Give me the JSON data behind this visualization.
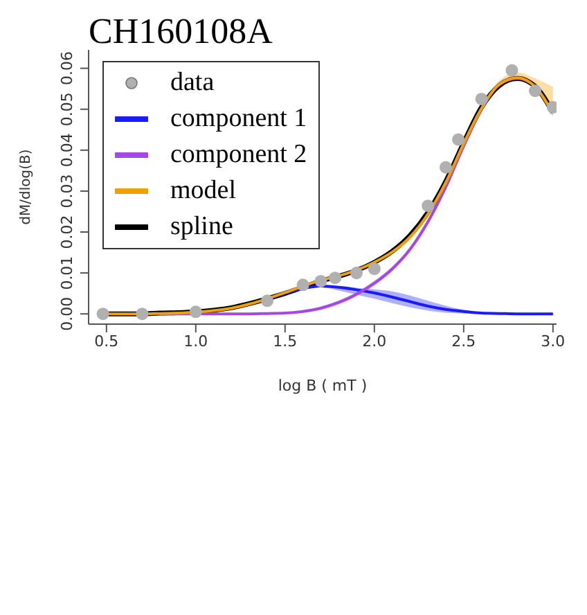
{
  "chart_data": {
    "type": "line",
    "title": "CH160108A",
    "xlabel": "log B ( mT )",
    "ylabel": "dM/dlog(B)",
    "x": [
      0.5,
      0.6,
      0.7,
      0.8,
      0.9,
      1.0,
      1.1,
      1.2,
      1.3,
      1.4,
      1.5,
      1.6,
      1.7,
      1.8,
      1.9,
      2.0,
      2.1,
      2.2,
      2.3,
      2.4,
      2.5,
      2.6,
      2.7,
      2.8,
      2.9,
      3.0
    ],
    "xlim": [
      0.4,
      3.02
    ],
    "xticks": [
      0.5,
      {
        "value": 1,
        "label": "1.0"
      },
      1.5,
      {
        "value": 2,
        "label": "2.0"
      },
      2.5,
      {
        "value": 3,
        "label": "3.0"
      }
    ],
    "ylim": [
      -0.0025,
      0.0645
    ],
    "yticks": [
      {
        "value": 0,
        "label": "0.00"
      },
      0.01,
      0.02,
      0.03,
      0.04,
      0.05,
      0.06
    ],
    "grid": false,
    "legend": "top left",
    "series": [
      {
        "name": "data",
        "type": "scatter",
        "marker": "circle",
        "color": "#b0b0b0",
        "x": [
          0.48,
          0.7,
          1.0,
          1.4,
          1.6,
          1.7,
          1.78,
          1.9,
          2.0,
          2.3,
          2.4,
          2.47,
          2.6,
          2.77,
          2.9,
          3.0
        ],
        "values": [
          0,
          0,
          0.0005,
          0.0032,
          0.0071,
          0.008,
          0.0088,
          0.01,
          0.011,
          0.0264,
          0.0358,
          0.0426,
          0.0525,
          0.0595,
          0.0545,
          0.0505
        ]
      },
      {
        "name": "component 1",
        "type": "line",
        "marker": "none",
        "color": "#1a1aff",
        "values": [
          null,
          null,
          null,
          null,
          null,
          null,
          null,
          null,
          null,
          0.0036,
          0.005,
          0.0062,
          0.0068,
          0.0065,
          0.0059,
          0.0051,
          0.0041,
          0.003,
          0.0019,
          0.0011,
          0.0006,
          0.0002,
          0.0001,
          0,
          0,
          0
        ],
        "lower": [
          0,
          0,
          0,
          0.0001,
          0.0002,
          0.0004,
          0.0008,
          0.0014,
          0.0024,
          0.0036,
          0.005,
          0.0061,
          0.0065,
          0.0057,
          0.0047,
          0.0037,
          0.0026,
          0.0016,
          0.0008,
          0.0003,
          0.0001,
          0,
          0,
          0,
          0,
          0
        ],
        "upper": [
          0,
          0,
          0,
          0.0001,
          0.0002,
          0.0004,
          0.0008,
          0.0014,
          0.0024,
          0.0036,
          0.005,
          0.0063,
          0.0069,
          0.0068,
          0.0064,
          0.006,
          0.0055,
          0.0045,
          0.0032,
          0.002,
          0.001,
          0.0004,
          0.0001,
          0,
          0,
          0
        ]
      },
      {
        "name": "component 2",
        "type": "line",
        "marker": "none",
        "color": "#a347e6",
        "values": [
          null,
          null,
          null,
          0,
          0,
          0,
          0,
          0,
          0,
          0.0001,
          0.0002,
          0.0006,
          0.0014,
          0.0028,
          0.0048,
          0.0075,
          0.011,
          0.0158,
          0.0225,
          0.031,
          0.041,
          0.05,
          0.056,
          0.0575,
          0.0555,
          0.049
        ],
        "lower": [
          0,
          0,
          0,
          0,
          0,
          0,
          0,
          0,
          0,
          0.0001,
          0.0002,
          0.0004,
          0.001,
          0.0023,
          0.0043,
          0.0069,
          0.0104,
          0.0152,
          0.0218,
          0.0302,
          0.0402,
          0.0492,
          0.0553,
          0.0568,
          0.0548,
          0.0483
        ],
        "upper": [
          0,
          0,
          0,
          0,
          0,
          0,
          0,
          0,
          0,
          0.0001,
          0.0002,
          0.0008,
          0.0018,
          0.0033,
          0.0053,
          0.0081,
          0.0116,
          0.0164,
          0.0232,
          0.0318,
          0.0418,
          0.0508,
          0.0567,
          0.0582,
          0.0562,
          0.0497
        ]
      },
      {
        "name": "model",
        "type": "line",
        "marker": "none",
        "color": "#f0a000",
        "values": [
          0,
          0,
          0,
          0.0001,
          0.0002,
          0.0004,
          0.0008,
          0.0014,
          0.0024,
          0.0037,
          0.0052,
          0.0068,
          0.0082,
          0.0093,
          0.0107,
          0.0126,
          0.0151,
          0.0188,
          0.0244,
          0.0321,
          0.0416,
          0.0502,
          0.0561,
          0.0577,
          0.0555,
          0.049
        ],
        "lower": [
          0,
          0,
          0,
          0.0001,
          0.0002,
          0.0004,
          0.0008,
          0.0014,
          0.0024,
          0.0037,
          0.0052,
          0.0068,
          0.0082,
          0.0093,
          0.0107,
          0.0126,
          0.0151,
          0.0188,
          0.0244,
          0.0321,
          0.0416,
          0.0502,
          0.0561,
          0.0577,
          0.0555,
          0.049
        ],
        "upper": [
          0,
          0,
          0,
          0.0001,
          0.0002,
          0.0004,
          0.0008,
          0.0014,
          0.0024,
          0.0037,
          0.0052,
          0.0068,
          0.0082,
          0.0093,
          0.0107,
          0.0126,
          0.0151,
          0.0188,
          0.0244,
          0.0321,
          0.0416,
          0.0506,
          0.057,
          0.059,
          0.0575,
          0.0555
        ]
      },
      {
        "name": "spline",
        "type": "line",
        "marker": "none",
        "color": "#000000",
        "values": [
          0,
          0,
          0,
          0.0002,
          0.0003,
          0.0005,
          0.0009,
          0.0015,
          0.0025,
          0.0037,
          0.005,
          0.0065,
          0.008,
          0.0092,
          0.0106,
          0.0126,
          0.0153,
          0.0192,
          0.0248,
          0.0324,
          0.0418,
          0.0505,
          0.0558,
          0.0575,
          0.0556,
          0.0492
        ]
      }
    ]
  }
}
